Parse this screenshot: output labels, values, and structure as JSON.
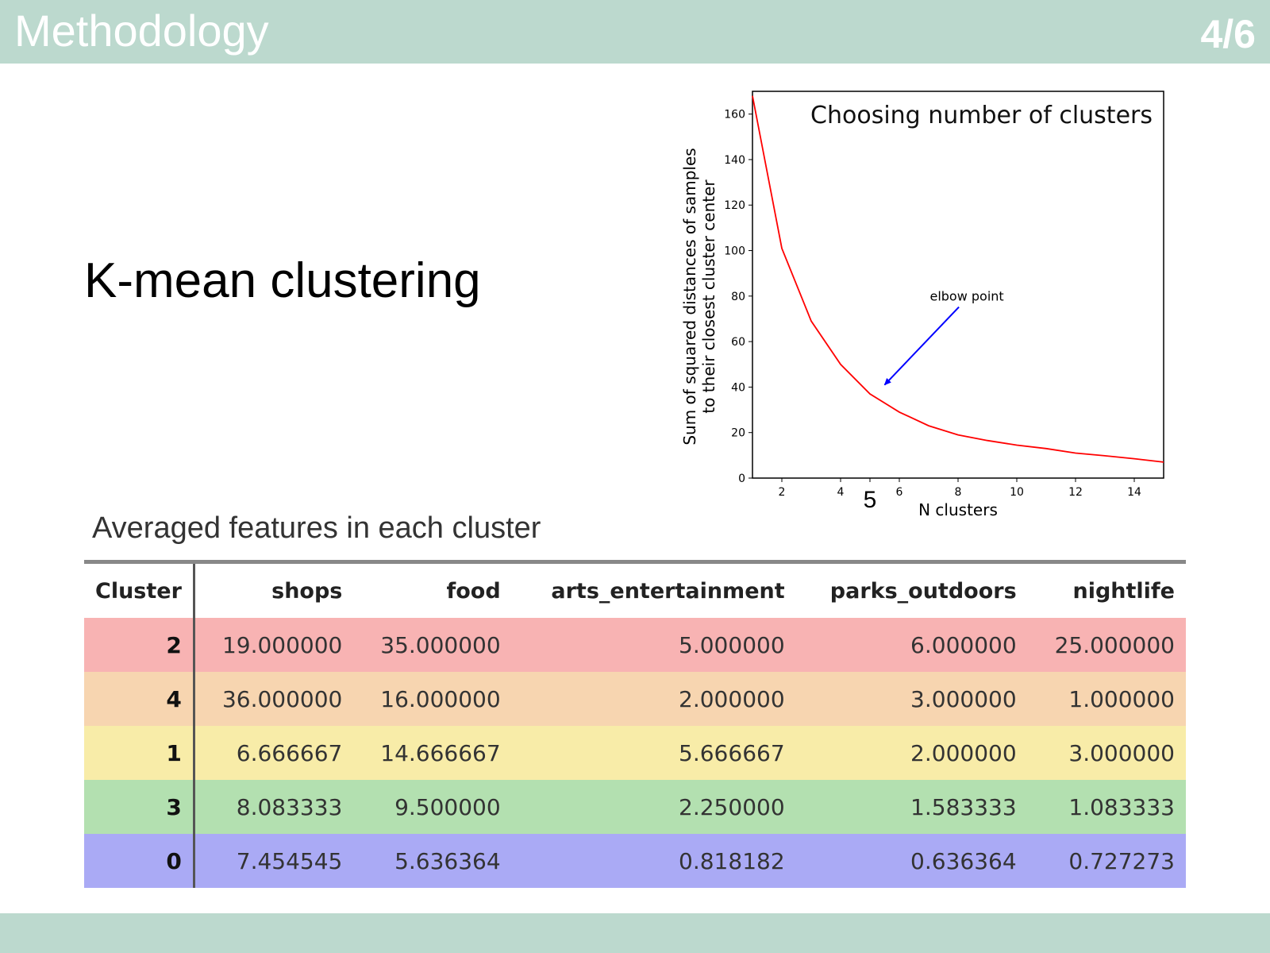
{
  "header": {
    "title": "Methodology",
    "page": "4/6"
  },
  "main_title": "K-mean  clustering",
  "table": {
    "caption": "Averaged features in each cluster",
    "columns": [
      "Cluster",
      "shops",
      "food",
      "arts_entertainment",
      "parks_outdoors",
      "nightlife"
    ],
    "rows": [
      {
        "cells": [
          "2",
          "19.000000",
          "35.000000",
          "5.000000",
          "6.000000",
          "25.000000"
        ],
        "color": "#f8b3b3"
      },
      {
        "cells": [
          "4",
          "36.000000",
          "16.000000",
          "2.000000",
          "3.000000",
          "1.000000"
        ],
        "color": "#f7d5b0"
      },
      {
        "cells": [
          "1",
          "6.666667",
          "14.666667",
          "5.666667",
          "2.000000",
          "3.000000"
        ],
        "color": "#f8eca8"
      },
      {
        "cells": [
          "3",
          "8.083333",
          "9.500000",
          "2.250000",
          "1.583333",
          "1.083333"
        ],
        "color": "#b3e0b0"
      },
      {
        "cells": [
          "0",
          "7.454545",
          "5.636364",
          "0.818182",
          "0.636364",
          "0.727273"
        ],
        "color": "#aaaaf5"
      }
    ]
  },
  "chart_data": {
    "type": "line",
    "title": "Choosing number of clusters",
    "xlabel": "N clusters",
    "ylabel_lines": [
      "Sum of squared distances of samples",
      "to their closest cluster center"
    ],
    "x": [
      1,
      2,
      3,
      4,
      5,
      6,
      7,
      8,
      9,
      10,
      11,
      12,
      13,
      14,
      15
    ],
    "y": [
      168,
      101,
      69,
      50,
      37,
      29,
      23,
      19,
      16.5,
      14.5,
      13,
      11,
      9.8,
      8.5,
      7
    ],
    "xlim": [
      1,
      15
    ],
    "ylim": [
      0,
      170
    ],
    "xticks": [
      2,
      4,
      6,
      8,
      10,
      12,
      14
    ],
    "yticks": [
      0,
      20,
      40,
      60,
      80,
      100,
      120,
      140,
      160
    ],
    "line_color": "#ff0000",
    "annotation": {
      "text": "elbow point",
      "target_x": 5.5,
      "target_y": 41,
      "text_x": 8.3,
      "text_y": 78,
      "arrow_color": "#0000ff"
    },
    "highlight_label": {
      "text": "5",
      "x": 5
    }
  }
}
